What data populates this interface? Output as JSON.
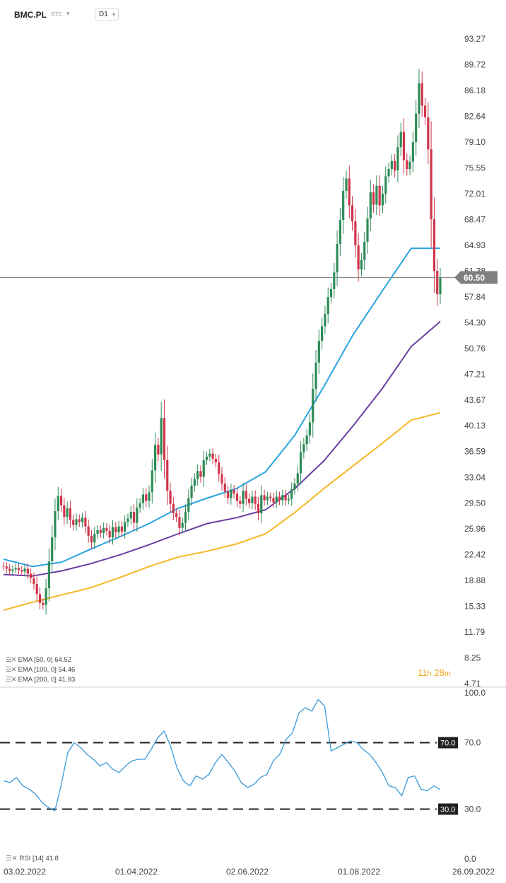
{
  "header": {
    "symbol": "BMC.PL",
    "type": "STC",
    "timeframe": "D1"
  },
  "price_label": "60.50",
  "countdown": {
    "hours": "11",
    "h": "h",
    "minutes": "28",
    "m": "m"
  },
  "legend": [
    {
      "label": "EMA [50, 0] 64.52",
      "color": "#29a3e0"
    },
    {
      "label": "EMA [100, 0] 54.46",
      "color": "#6a3fa0"
    },
    {
      "label": "EMA [200, 0] 41.93",
      "color": "#f4b824"
    }
  ],
  "rsi_legend": "RSI [14] 41.8",
  "colors": {
    "up": "#2e8b57",
    "down": "#d0354a",
    "rsi": "#3a9ad9",
    "price_line": "#888888"
  },
  "chart_data": [
    {
      "type": "candlestick",
      "title": "BMC.PL",
      "x_tick_labels": [
        "03.02.2022",
        "01.04.2022",
        "02.06.2022",
        "01.08.2022",
        "26.09.2022"
      ],
      "y_tick_labels": [
        "93.27",
        "89.72",
        "86.18",
        "82.64",
        "79.10",
        "75.55",
        "72.01",
        "68.47",
        "64.93",
        "61.38",
        "57.84",
        "54.30",
        "50.76",
        "47.21",
        "43.67",
        "40.13",
        "36.59",
        "33.04",
        "29.50",
        "25.96",
        "22.42",
        "18.88",
        "15.33",
        "11.79",
        "8.25",
        "4.71"
      ],
      "ylim": [
        4.71,
        93.27
      ],
      "last_price": 60.5,
      "close": [
        20.8,
        20.5,
        20.2,
        20.4,
        20.6,
        20.3,
        20.1,
        20.5,
        19.8,
        19.2,
        18.4,
        17.0,
        15.8,
        15.5,
        17.8,
        21.5,
        24.8,
        28.4,
        30.5,
        29.2,
        27.6,
        28.8,
        27.2,
        26.5,
        27.3,
        26.9,
        27.5,
        26.3,
        25.0,
        24.1,
        25.3,
        25.8,
        25.4,
        26.1,
        25.7,
        24.8,
        26.2,
        25.5,
        26.3,
        25.6,
        26.9,
        27.4,
        28.3,
        26.8,
        28.9,
        29.5,
        30.7,
        29.8,
        31.0,
        34.0,
        37.5,
        36.2,
        41.2,
        35.4,
        31.2,
        29.4,
        28.1,
        27.6,
        26.1,
        26.8,
        28.3,
        30.2,
        31.9,
        32.8,
        33.9,
        33.1,
        35.4,
        35.9,
        36.3,
        35.6,
        35.1,
        33.5,
        32.2,
        31.1,
        30.2,
        31.3,
        30.8,
        29.8,
        29.4,
        31.2,
        30.1,
        29.5,
        30.4,
        29.4,
        28.1,
        30.6,
        29.9,
        30.4,
        30.2,
        29.6,
        30.4,
        29.9,
        30.6,
        29.9,
        30.1,
        31.4,
        32.2,
        33.6,
        36.5,
        37.6,
        38.8,
        40.6,
        45.2,
        48.8,
        51.8,
        53.8,
        55.5,
        57.8,
        58.9,
        61.2,
        65.1,
        68.4,
        72.4,
        74.1,
        70.4,
        68.2,
        64.9,
        61.6,
        62.9,
        65.4,
        68.6,
        72.2,
        70.5,
        73.1,
        70.4,
        72.0,
        74.4,
        75.4,
        76.5,
        75.2,
        78.4,
        80.5,
        76.6,
        75.4,
        76.4,
        79.1,
        83.0,
        87.2,
        84.1,
        82.5,
        78.1,
        68.5,
        61.4,
        58.2,
        60.5
      ],
      "series": [
        {
          "name": "EMA [50, 0]",
          "y": [
            21.8,
            20.8,
            21.4,
            23.2,
            24.9,
            26.7,
            28.8,
            30.2,
            31.5,
            33.8,
            38.8,
            45.5,
            52.6,
            58.6,
            64.5,
            64.52
          ]
        },
        {
          "name": "EMA [100, 0]",
          "y": [
            19.7,
            19.5,
            20.2,
            21.2,
            22.4,
            23.8,
            25.3,
            26.7,
            27.5,
            28.6,
            31.5,
            35.3,
            40.1,
            45.2,
            51.0,
            54.46
          ]
        },
        {
          "name": "EMA [200, 0]",
          "y": [
            14.8,
            15.9,
            16.9,
            17.9,
            19.3,
            20.8,
            22.1,
            22.9,
            23.9,
            25.3,
            28.2,
            31.5,
            34.6,
            37.7,
            40.9,
            41.93
          ]
        }
      ]
    },
    {
      "type": "line",
      "title": "RSI [14]",
      "y_tick_labels": [
        "100.0",
        "70.0",
        "30.0",
        "0.0"
      ],
      "ylim": [
        0,
        100
      ],
      "levels": [
        "70.0",
        "30.0"
      ],
      "series": [
        {
          "name": "RSI [14]",
          "y": [
            47,
            46,
            49,
            44,
            42,
            39,
            34,
            31,
            29,
            45,
            64,
            70,
            67,
            63,
            60,
            56,
            58,
            54,
            52,
            56,
            59,
            60,
            60,
            66,
            73,
            77,
            68,
            55,
            47,
            44,
            50,
            48,
            51,
            58,
            63,
            58,
            53,
            46,
            43,
            45,
            49,
            51,
            59,
            63,
            72,
            76,
            88,
            91,
            89,
            96,
            92,
            65,
            67,
            69,
            71,
            70,
            66,
            63,
            58,
            52,
            44,
            43,
            38,
            49,
            50,
            42,
            41,
            44,
            41.8
          ]
        }
      ]
    }
  ]
}
